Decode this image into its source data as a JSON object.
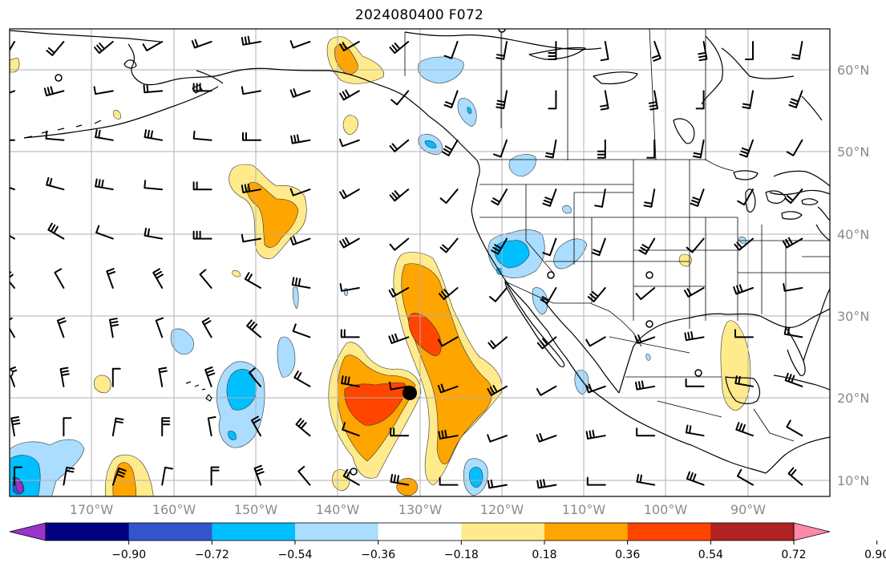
{
  "title": "2024080400 F072",
  "map": {
    "projection": "PlateCarree",
    "lon_range": [
      -180,
      -80
    ],
    "lat_range": [
      8,
      64
    ],
    "gridlines": true,
    "lat_labels": [
      "10°N",
      "20°N",
      "30°N",
      "40°N",
      "50°N",
      "60°N"
    ],
    "lon_labels": [
      "170°W",
      "160°W",
      "150°W",
      "140°W",
      "130°W",
      "120°W",
      "110°W",
      "100°W",
      "90°W"
    ],
    "marker": {
      "lon": -130.2,
      "lat": 20.5,
      "label": ""
    }
  },
  "colorbar": {
    "extend": "both",
    "ticks": [
      "−0.90",
      "−0.72",
      "−0.54",
      "−0.36",
      "−0.18",
      "0.18",
      "0.36",
      "0.54",
      "0.72",
      "0.90"
    ],
    "colors": [
      "#9933cc",
      "#000080",
      "#3355cc",
      "#00bfff",
      "#aaddff",
      "#ffffff",
      "#ffeb8c",
      "#ffa500",
      "#ff4500",
      "#b22222",
      "#ff88aa"
    ]
  },
  "colors": {
    "coast": "#000000",
    "grid": "#b0b0b0",
    "light_blue": "#aaddff",
    "blue": "#00bfff",
    "mid_blue": "#3355cc",
    "purple": "#9933cc",
    "light_yellow": "#ffeb8c",
    "orange": "#ffa500",
    "red_orange": "#ff4500"
  }
}
